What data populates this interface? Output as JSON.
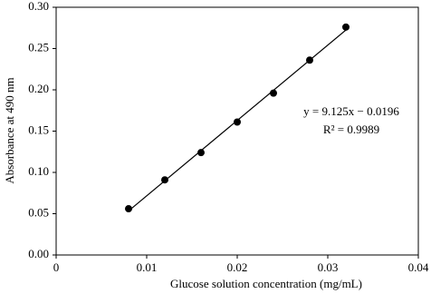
{
  "chart_data": {
    "type": "scatter",
    "x_label": "Glucose solution concentration (mg/mL)",
    "y_label": "Absorbance at 490 nm",
    "x": [
      0.008,
      0.012,
      0.016,
      0.02,
      0.024,
      0.028,
      0.032
    ],
    "values": [
      0.056,
      0.091,
      0.124,
      0.161,
      0.196,
      0.236,
      0.276
    ],
    "color": "#000000",
    "fit": {
      "slope": 9.125,
      "intercept": -0.0196
    },
    "annotations": [
      "y = 9.125x − 0.0196",
      "R² = 0.9989"
    ],
    "xlim": [
      0,
      0.04
    ],
    "xticks": [
      0,
      0.01,
      0.02,
      0.03,
      0.04
    ],
    "ylim": [
      0,
      0.3
    ],
    "yticks": [
      {
        "value": 0,
        "label": "0.00"
      },
      {
        "value": 0.05,
        "label": "0.05"
      },
      {
        "value": 0.1,
        "label": "0.10"
      },
      {
        "value": 0.15,
        "label": "0.15"
      },
      {
        "value": 0.2,
        "label": "0.20"
      },
      {
        "value": 0.25,
        "label": "0.25"
      },
      {
        "value": 0.3,
        "label": "0.30"
      }
    ],
    "grid": false
  }
}
